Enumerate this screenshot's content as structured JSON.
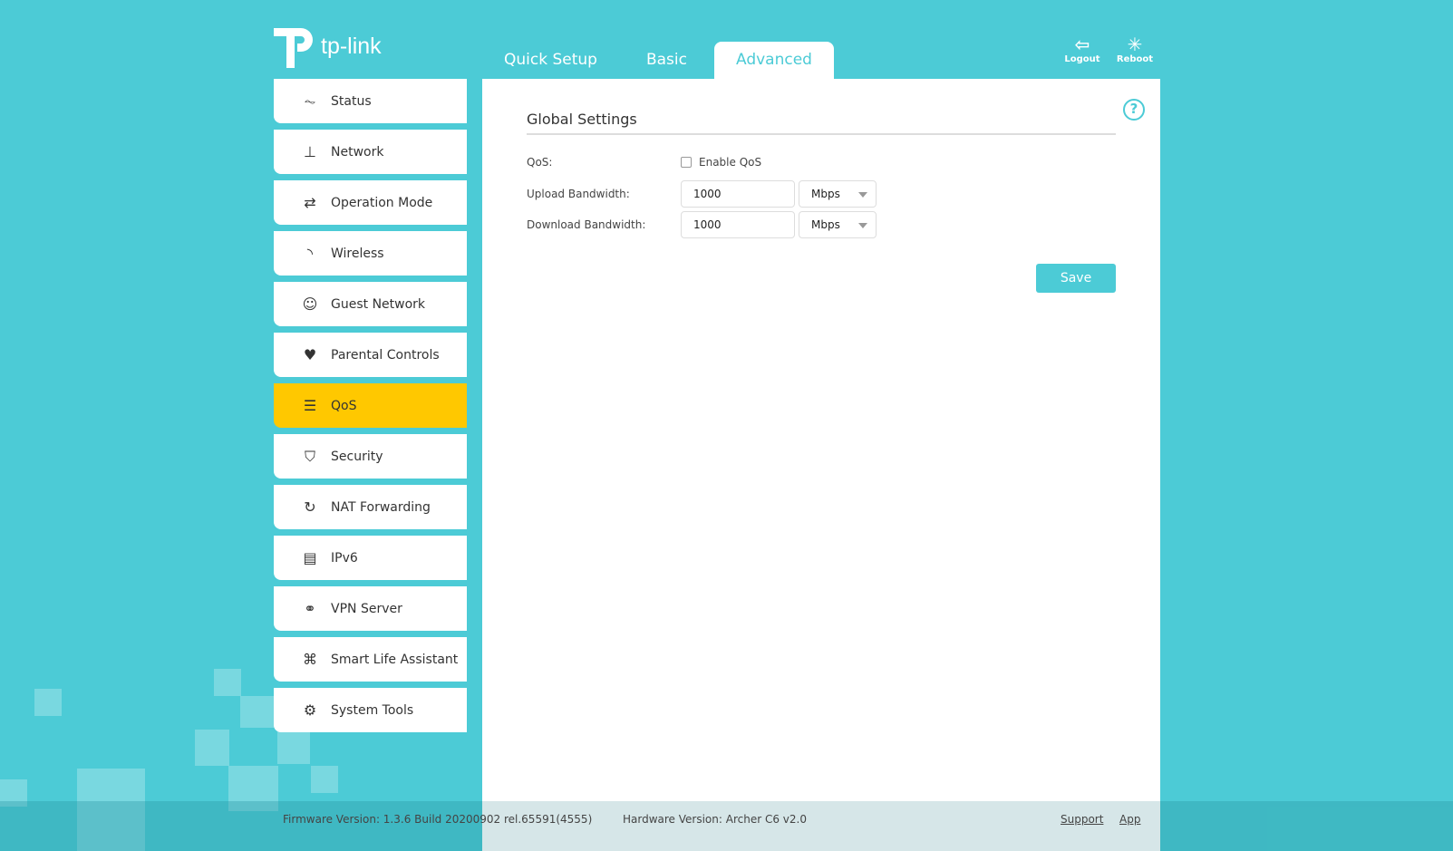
{
  "brand": {
    "name": "tp-link"
  },
  "tabs": [
    {
      "label": "Quick Setup"
    },
    {
      "label": "Basic"
    },
    {
      "label": "Advanced",
      "active": true
    }
  ],
  "top_buttons": {
    "logout": "Logout",
    "reboot": "Reboot"
  },
  "sidebar": {
    "items": [
      {
        "label": "Status",
        "icon": "activity-icon"
      },
      {
        "label": "Network",
        "icon": "network-icon"
      },
      {
        "label": "Operation Mode",
        "icon": "swap-icon"
      },
      {
        "label": "Wireless",
        "icon": "wifi-icon"
      },
      {
        "label": "Guest Network",
        "icon": "users-icon"
      },
      {
        "label": "Parental Controls",
        "icon": "family-icon"
      },
      {
        "label": "QoS",
        "icon": "qos-icon",
        "active": true
      },
      {
        "label": "Security",
        "icon": "shield-icon"
      },
      {
        "label": "NAT Forwarding",
        "icon": "refresh-icon"
      },
      {
        "label": "IPv6",
        "icon": "document-icon"
      },
      {
        "label": "VPN Server",
        "icon": "link-icon"
      },
      {
        "label": "Smart Life Assistant",
        "icon": "command-icon"
      },
      {
        "label": "System Tools",
        "icon": "gear-icon"
      }
    ]
  },
  "main": {
    "section_title": "Global Settings",
    "qos_label": "QoS:",
    "enable_label": "Enable QoS",
    "enabled": false,
    "upload_label": "Upload Bandwidth:",
    "upload_value": "1000",
    "upload_unit": "Mbps",
    "download_label": "Download Bandwidth:",
    "download_value": "1000",
    "download_unit": "Mbps",
    "save_label": "Save"
  },
  "footer": {
    "firmware": "Firmware Version: 1.3.6 Build 20200902 rel.65591(4555)",
    "hardware": "Hardware Version: Archer C6 v2.0",
    "support": "Support",
    "app": "App"
  },
  "colors": {
    "accent": "#4ccbd6",
    "active": "#ffc800"
  }
}
